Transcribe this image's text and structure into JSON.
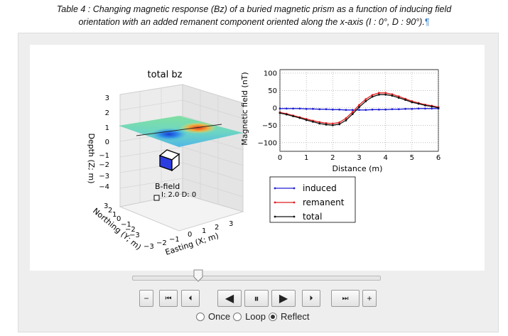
{
  "caption": {
    "line1": "Table 4 : Changing magnetic response (Bz) of a buried magnetic prism as a function of inducing field",
    "line2": "orientation with an added remanent component oriented along the x-axis (I : 0°,  D : 90°).",
    "pilcrow": "¶"
  },
  "plot3d": {
    "title": "total bz",
    "zlabel": "Depth (Z; m)",
    "ylabel": "Northing (Y; m)",
    "xlabel": "Easting (X; m)",
    "zticks": [
      "3",
      "2",
      "1",
      "0",
      "−1",
      "−2",
      "−3",
      "−4"
    ],
    "yticks": [
      "3",
      "2",
      "1",
      "0",
      "−1",
      "−2",
      "−3"
    ],
    "xticks": [
      "−3",
      "−2",
      "−1",
      "0",
      "1",
      "2",
      "3"
    ],
    "bfield_label": "B-field",
    "bfield_value": "I: 2.0 D: 0"
  },
  "chart_data": {
    "type": "line",
    "xlabel": "Distance (m)",
    "ylabel": "Magnetic field (nT)",
    "xlim": [
      0,
      6
    ],
    "ylim": [
      -125,
      110
    ],
    "xticks": [
      0,
      1,
      2,
      3,
      4,
      5,
      6
    ],
    "yticks": [
      100,
      50,
      0,
      -50,
      -100
    ],
    "grid": true,
    "legend_placement": "below",
    "x": [
      0,
      0.25,
      0.5,
      0.75,
      1,
      1.25,
      1.5,
      1.75,
      2,
      2.25,
      2.5,
      2.75,
      3,
      3.25,
      3.5,
      3.75,
      4,
      4.25,
      4.5,
      4.75,
      5,
      5.25,
      5.5,
      5.75,
      6
    ],
    "series": [
      {
        "name": "induced",
        "color": "#1f1fd6",
        "values": [
          -2,
          -2,
          -2,
          -2,
          -3,
          -3,
          -4,
          -4,
          -5,
          -5,
          -6,
          -6,
          -6,
          -6,
          -5,
          -5,
          -5,
          -4,
          -4,
          -3,
          -3,
          -2,
          -2,
          -2,
          -2
        ]
      },
      {
        "name": "remanent",
        "color": "#e01c1c",
        "values": [
          -13,
          -17,
          -22,
          -27,
          -32,
          -37,
          -41,
          -44,
          -45,
          -42,
          -30,
          -12,
          8,
          25,
          37,
          43,
          43,
          39,
          33,
          26,
          19,
          14,
          9,
          6,
          2
        ]
      },
      {
        "name": "total",
        "color": "#111111",
        "values": [
          -15,
          -19,
          -24,
          -29,
          -35,
          -40,
          -45,
          -48,
          -50,
          -47,
          -36,
          -18,
          2,
          19,
          32,
          38,
          38,
          35,
          29,
          23,
          16,
          12,
          7,
          4,
          0
        ]
      }
    ]
  },
  "controls": {
    "minus": "−",
    "plus": "+",
    "first": "⏮",
    "prev": "⏴",
    "rev": "◀",
    "pause": "⏸",
    "play": "▶",
    "next": "⏵",
    "last": "⏭",
    "modes": [
      {
        "label": "Once",
        "selected": false
      },
      {
        "label": "Loop",
        "selected": false
      },
      {
        "label": "Reflect",
        "selected": true
      }
    ]
  }
}
